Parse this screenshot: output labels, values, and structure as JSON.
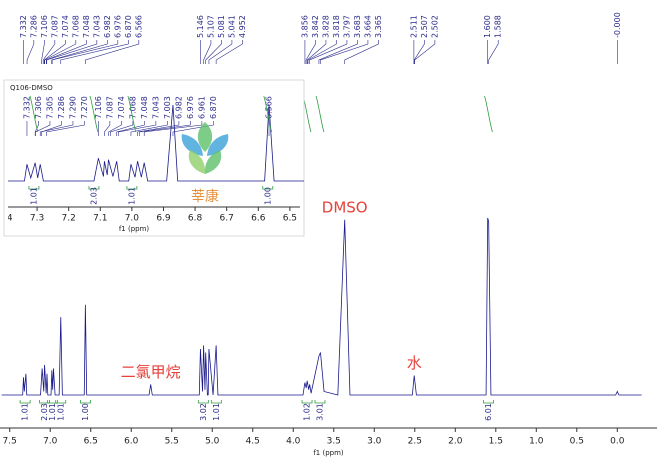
{
  "chart_data": [
    {
      "type": "line",
      "xlabel": "f1 (ppm)",
      "xlim": [
        7.62,
        -0.49
      ],
      "ylim": [
        0,
        100
      ],
      "xticks": [
        7.5,
        {
          "value": 7,
          "label": "7.0"
        },
        6.5,
        {
          "value": 6,
          "label": "6.0"
        },
        5.5,
        {
          "value": 5,
          "label": "5.0"
        },
        4.5,
        {
          "value": 4,
          "label": "4.0"
        },
        3.5,
        {
          "value": 3,
          "label": "3.0"
        },
        2.5,
        {
          "value": 2,
          "label": "2.0"
        },
        1.5,
        {
          "value": 1,
          "label": "1.0"
        },
        0.5,
        {
          "value": 0,
          "label": "0.0"
        }
      ],
      "color": "#1a1a8c",
      "x": [
        7.6,
        7.34,
        7.33,
        7.32,
        7.3,
        7.29,
        7.12,
        7.1,
        7.08,
        7.07,
        7.05,
        7.04,
        7.03,
        6.99,
        6.98,
        6.97,
        6.96,
        6.94,
        6.89,
        6.87,
        6.85,
        6.58,
        6.566,
        6.55,
        5.78,
        5.76,
        5.74,
        5.16,
        5.146,
        5.12,
        5.107,
        5.09,
        5.081,
        5.06,
        5.05,
        5.041,
        4.99,
        4.952,
        4.93,
        3.88,
        3.856,
        3.84,
        3.828,
        3.81,
        3.797,
        3.78,
        3.683,
        3.664,
        3.62,
        3.45,
        3.365,
        3.3,
        2.53,
        2.507,
        2.48,
        1.62,
        1.6,
        1.588,
        1.56,
        0.02,
        0,
        -0.02,
        -0.3
      ],
      "values": [
        0,
        0,
        10,
        2,
        12,
        0,
        0,
        15,
        2,
        17,
        1,
        12,
        0,
        0,
        14,
        3,
        15,
        0,
        0,
        44,
        0,
        0,
        51,
        0,
        0,
        6,
        0,
        0,
        26,
        2,
        28,
        3,
        24,
        0,
        0,
        26,
        0,
        28,
        0,
        0,
        7,
        4,
        8,
        3,
        6,
        1,
        22,
        24,
        2,
        0,
        99,
        0,
        0,
        11,
        0,
        0,
        100,
        98,
        0,
        0,
        2,
        0,
        0
      ],
      "peak_labels": [
        "7.332",
        "7.286",
        "7.106",
        "7.087",
        "7.074",
        "7.068",
        "7.048",
        "7.043",
        "6.982",
        "6.976",
        "6.870",
        "6.566",
        "5.146",
        "5.107",
        "5.081",
        "5.041",
        "4.952",
        "3.856",
        "3.842",
        "3.828",
        "3.818",
        "3.797",
        "3.683",
        "3.664",
        "3.365",
        "2.511",
        "2.507",
        "2.502",
        "1.600",
        "1.588",
        "-0.000"
      ],
      "integrals": [
        {
          "x": 7.31,
          "label": "1.01"
        },
        {
          "x": 7.07,
          "label": "2.03"
        },
        {
          "x": 6.97,
          "label": "1.01"
        },
        {
          "x": 6.87,
          "label": "1.01"
        },
        {
          "x": 6.566,
          "label": "1.00"
        },
        {
          "x": 5.11,
          "label": "3.02"
        },
        {
          "x": 4.95,
          "label": "1.01"
        },
        {
          "x": 3.83,
          "label": "1.02"
        },
        {
          "x": 3.67,
          "label": "3.01"
        },
        {
          "x": 1.59,
          "label": "6.01"
        }
      ],
      "annotations": [
        {
          "text": "DMSO",
          "x": 3.365
        },
        {
          "text": "二氯甲烷",
          "x": 5.76
        },
        {
          "text": "水",
          "x": 2.507
        }
      ],
      "annotation_color": "#e8403a",
      "integral_color": "#2e9e3e"
    },
    {
      "type": "line",
      "title": "Q106-DMSO",
      "xlabel": "f1 (ppm)",
      "xlim": [
        7.392,
        6.468
      ],
      "ylim": [
        0,
        100
      ],
      "xticks": [
        7.4,
        7.3,
        7.2,
        7.1,
        {
          "value": 7,
          "label": "7.0"
        },
        6.9,
        6.8,
        6.7,
        6.6,
        6.5
      ],
      "color": "#1a1a8c",
      "x": [
        7.45,
        7.34,
        7.332,
        7.32,
        7.306,
        7.298,
        7.29,
        7.28,
        7.12,
        7.106,
        7.09,
        7.087,
        7.078,
        7.074,
        7.06,
        7.048,
        7.04,
        7.01,
        7.003,
        6.99,
        6.982,
        6.97,
        6.961,
        6.95,
        6.89,
        6.87,
        6.855,
        6.58,
        6.566,
        6.55,
        6.43
      ],
      "values": [
        0,
        0,
        22,
        4,
        24,
        4,
        22,
        0,
        0,
        30,
        6,
        26,
        8,
        28,
        6,
        26,
        0,
        0,
        22,
        5,
        26,
        5,
        24,
        0,
        0,
        100,
        0,
        0,
        100,
        0,
        0
      ],
      "peak_labels": [
        "7.332",
        "7.306",
        "7.305",
        "7.286",
        "7.290",
        "7.270",
        "7.106",
        "7.087",
        "7.074",
        "7.068",
        "7.048",
        "7.043",
        "7.003",
        "6.982",
        "6.976",
        "6.961",
        "6.870",
        "6.566"
      ],
      "integrals": [
        {
          "x": 7.31,
          "label": "1.01"
        },
        {
          "x": 7.12,
          "label": "2.03"
        },
        {
          "x": 7.0,
          "label": "1.01"
        },
        {
          "x": 6.57,
          "label": "1.00"
        }
      ],
      "integral_color": "#2e9e3e"
    }
  ],
  "watermark": "莘康"
}
